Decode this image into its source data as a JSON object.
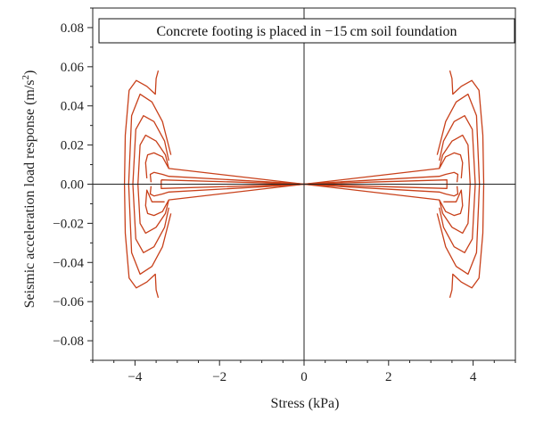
{
  "chart_data": {
    "type": "line",
    "title": "Concrete footing is placed in −15 cm soil foundation",
    "xlabel": "Stress (kPa)",
    "ylabel_main": "Seismic acceleration load response (m/s",
    "ylabel_sup": "2",
    "ylabel_close": ")",
    "xlim": [
      -5,
      5
    ],
    "ylim": [
      -0.09,
      0.09
    ],
    "xticks": [
      -4,
      -2,
      0,
      2,
      4
    ],
    "xtick_labels": [
      "−4",
      "−2",
      "0",
      "2",
      "4"
    ],
    "yticks": [
      -0.08,
      -0.06,
      -0.04,
      -0.02,
      0.0,
      0.02,
      0.04,
      0.06,
      0.08
    ],
    "ytick_labels": [
      "−0.08",
      "−0.06",
      "−0.04",
      "−0.02",
      "0.00",
      "0.02",
      "0.04",
      "0.06",
      "0.08"
    ],
    "grid": false,
    "line_color": "#c8401a",
    "series": [
      {
        "name": "",
        "points": [
          [
            -3.62,
            -0.001
          ],
          [
            -3.64,
            -0.005
          ],
          [
            -3.55,
            -0.006
          ],
          [
            -3.35,
            -0.005
          ],
          [
            -3.2,
            -0.004
          ],
          [
            -0.15,
            -0.0003
          ],
          [
            0,
            0
          ],
          [
            0.15,
            0.0003
          ],
          [
            3.2,
            0.004
          ],
          [
            3.35,
            0.005
          ],
          [
            3.55,
            0.006
          ],
          [
            3.64,
            0.005
          ],
          [
            3.62,
            0.001
          ]
        ]
      },
      {
        "name": "",
        "points": [
          [
            3.62,
            -0.001
          ],
          [
            3.64,
            -0.005
          ],
          [
            3.55,
            -0.006
          ],
          [
            3.35,
            -0.005
          ],
          [
            3.2,
            -0.004
          ],
          [
            0.15,
            -0.0003
          ],
          [
            0,
            0
          ],
          [
            -0.15,
            0.0003
          ],
          [
            -3.2,
            0.004
          ],
          [
            -3.35,
            0.005
          ],
          [
            -3.55,
            0.006
          ],
          [
            -3.64,
            0.005
          ],
          [
            -3.62,
            0.001
          ]
        ]
      },
      {
        "name": "",
        "points": [
          [
            -3.72,
            0.003
          ],
          [
            -3.75,
            0.011
          ],
          [
            -3.7,
            0.015
          ],
          [
            -3.55,
            0.016
          ],
          [
            -3.35,
            0.014
          ],
          [
            -3.2,
            0.008
          ],
          [
            0,
            0
          ],
          [
            -3.2,
            -0.008
          ],
          [
            -3.35,
            -0.014
          ],
          [
            -3.55,
            -0.016
          ],
          [
            -3.7,
            -0.015
          ],
          [
            -3.75,
            -0.011
          ],
          [
            -3.72,
            -0.003
          ],
          [
            -3.6,
            -0.009
          ],
          [
            -3.3,
            -0.009
          ]
        ]
      },
      {
        "name": "",
        "points": [
          [
            3.72,
            0.003
          ],
          [
            3.75,
            0.011
          ],
          [
            3.7,
            0.015
          ],
          [
            3.55,
            0.016
          ],
          [
            3.35,
            0.014
          ],
          [
            3.2,
            0.008
          ],
          [
            0,
            0
          ],
          [
            3.2,
            -0.008
          ],
          [
            3.35,
            -0.014
          ],
          [
            3.55,
            -0.016
          ],
          [
            3.7,
            -0.015
          ],
          [
            3.75,
            -0.011
          ],
          [
            3.72,
            -0.003
          ],
          [
            3.6,
            -0.009
          ],
          [
            3.3,
            -0.009
          ]
        ]
      },
      {
        "name": "",
        "points": [
          [
            -3.2,
            0.008
          ],
          [
            -3.28,
            0.015
          ],
          [
            -3.5,
            0.022
          ],
          [
            -3.75,
            0.025
          ],
          [
            -3.88,
            0.02
          ],
          [
            -3.93,
            0.0
          ],
          [
            -3.88,
            -0.02
          ],
          [
            -3.75,
            -0.025
          ],
          [
            -3.5,
            -0.022
          ],
          [
            -3.28,
            -0.015
          ],
          [
            -3.2,
            -0.008
          ]
        ]
      },
      {
        "name": "",
        "points": [
          [
            3.2,
            0.008
          ],
          [
            3.28,
            0.015
          ],
          [
            3.5,
            0.022
          ],
          [
            3.75,
            0.025
          ],
          [
            3.88,
            0.02
          ],
          [
            3.93,
            0.0
          ],
          [
            3.88,
            -0.02
          ],
          [
            3.75,
            -0.025
          ],
          [
            3.5,
            -0.022
          ],
          [
            3.28,
            -0.015
          ],
          [
            3.2,
            -0.008
          ]
        ]
      },
      {
        "name": "",
        "points": [
          [
            -3.2,
            0.012
          ],
          [
            -3.3,
            0.022
          ],
          [
            -3.55,
            0.032
          ],
          [
            -3.8,
            0.035
          ],
          [
            -3.98,
            0.028
          ],
          [
            -4.05,
            0.0
          ],
          [
            -3.98,
            -0.028
          ],
          [
            -3.8,
            -0.035
          ],
          [
            -3.55,
            -0.032
          ],
          [
            -3.3,
            -0.022
          ],
          [
            -3.2,
            -0.012
          ]
        ]
      },
      {
        "name": "",
        "points": [
          [
            3.2,
            0.012
          ],
          [
            3.3,
            0.022
          ],
          [
            3.55,
            0.032
          ],
          [
            3.8,
            0.035
          ],
          [
            3.98,
            0.028
          ],
          [
            4.05,
            0.0
          ],
          [
            3.98,
            -0.028
          ],
          [
            3.8,
            -0.035
          ],
          [
            3.55,
            -0.032
          ],
          [
            3.3,
            -0.022
          ],
          [
            3.2,
            -0.012
          ]
        ]
      },
      {
        "name": "",
        "points": [
          [
            -3.15,
            0.015
          ],
          [
            -3.35,
            0.032
          ],
          [
            -3.6,
            0.042
          ],
          [
            -3.88,
            0.046
          ],
          [
            -4.08,
            0.035
          ],
          [
            -4.15,
            0.0
          ],
          [
            -4.08,
            -0.035
          ],
          [
            -3.88,
            -0.046
          ],
          [
            -3.6,
            -0.042
          ],
          [
            -3.35,
            -0.032
          ],
          [
            -3.15,
            -0.015
          ]
        ]
      },
      {
        "name": "",
        "points": [
          [
            3.15,
            0.015
          ],
          [
            3.35,
            0.032
          ],
          [
            3.6,
            0.042
          ],
          [
            3.88,
            0.046
          ],
          [
            4.08,
            0.035
          ],
          [
            4.15,
            0.0
          ],
          [
            4.08,
            -0.035
          ],
          [
            3.88,
            -0.046
          ],
          [
            3.6,
            -0.042
          ],
          [
            3.35,
            -0.032
          ],
          [
            3.15,
            -0.015
          ]
        ]
      },
      {
        "name": "",
        "points": [
          [
            -3.45,
            0.058
          ],
          [
            -3.5,
            0.054
          ],
          [
            -3.52,
            0.046
          ],
          [
            -3.72,
            0.05
          ],
          [
            -3.97,
            0.053
          ],
          [
            -4.14,
            0.048
          ],
          [
            -4.23,
            0.025
          ],
          [
            -4.25,
            0.0
          ],
          [
            -4.23,
            -0.025
          ],
          [
            -4.14,
            -0.048
          ],
          [
            -3.97,
            -0.053
          ],
          [
            -3.72,
            -0.05
          ],
          [
            -3.52,
            -0.046
          ],
          [
            -3.5,
            -0.054
          ],
          [
            -3.45,
            -0.058
          ]
        ]
      },
      {
        "name": "",
        "points": [
          [
            3.45,
            -0.058
          ],
          [
            3.5,
            -0.054
          ],
          [
            3.52,
            -0.046
          ],
          [
            3.72,
            -0.05
          ],
          [
            3.97,
            -0.053
          ],
          [
            4.14,
            -0.048
          ],
          [
            4.23,
            -0.025
          ],
          [
            4.25,
            0.0
          ],
          [
            4.23,
            0.025
          ],
          [
            4.14,
            0.048
          ],
          [
            3.97,
            0.053
          ],
          [
            3.72,
            0.05
          ],
          [
            3.52,
            0.046
          ],
          [
            3.5,
            0.054
          ],
          [
            3.45,
            0.058
          ]
        ]
      },
      {
        "name": "",
        "points": [
          [
            -3.38,
            0.0022
          ],
          [
            -3.38,
            -0.0022
          ],
          [
            -0.4,
            -0.0003
          ],
          [
            0,
            0
          ],
          [
            0.4,
            0.0003
          ],
          [
            3.38,
            0.0022
          ],
          [
            3.38,
            -0.0022
          ],
          [
            0.4,
            -0.0003
          ],
          [
            0,
            0
          ],
          [
            -0.4,
            0.0003
          ],
          [
            -3.38,
            0.0022
          ]
        ]
      }
    ]
  }
}
